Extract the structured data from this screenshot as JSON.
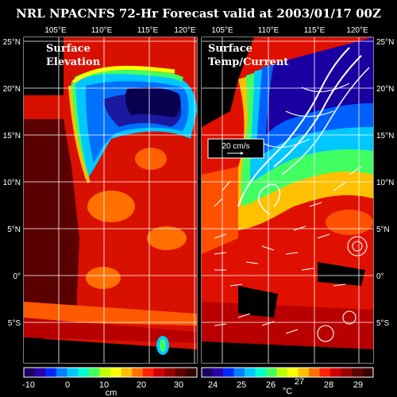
{
  "title": "NRL NPACNFS 72-Hr Forecast valid at 2003/01/17 00Z",
  "lon_ticks": [
    "105°E",
    "110°E",
    "115°E",
    "120°E"
  ],
  "lat_ticks_left": [
    "25°N",
    "20°N",
    "15°N",
    "10°N",
    "5°N",
    "0°",
    "5°S"
  ],
  "lat_ticks_right": [
    "25°N",
    "20°N",
    "15°N",
    "10°N",
    "5°N",
    "0°",
    "5°S"
  ],
  "panels": {
    "left": {
      "label_line1": "Surface",
      "label_line2": "Elevation"
    },
    "right": {
      "label_line1": "Surface",
      "label_line2": "Temp/Current",
      "vector_scale_label": "20 cm/s"
    }
  },
  "colorbars": {
    "left": {
      "ticks": [
        "-10",
        "0",
        "10",
        "20",
        "30"
      ],
      "unit": "cm"
    },
    "right": {
      "ticks": [
        "24",
        "25",
        "26",
        "27",
        "28",
        "29"
      ],
      "unit": "°C"
    }
  },
  "palette": [
    "#1a0060",
    "#2a00a8",
    "#0028ff",
    "#0080ff",
    "#00c8ff",
    "#00ffd0",
    "#40ff60",
    "#c0ff00",
    "#ffff00",
    "#ffc000",
    "#ff7000",
    "#ff2000",
    "#d00000",
    "#9a0000",
    "#600000",
    "#3a0000"
  ],
  "colors": {
    "background": "#000000",
    "land": "#000000",
    "text": "#ffffff",
    "grid": "#ffffff",
    "vectors": "#ffffff"
  }
}
